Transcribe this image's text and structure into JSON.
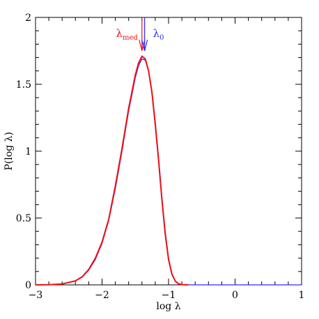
{
  "chart_data": {
    "type": "line",
    "title": "",
    "xlabel": "log λ",
    "ylabel": "P(log λ)",
    "xlim": [
      -3,
      1
    ],
    "ylim": [
      0,
      2
    ],
    "grid": false,
    "x_ticks": [
      {
        "value": -3,
        "label": "−3"
      },
      {
        "value": -2,
        "label": "−2"
      },
      {
        "value": -1,
        "label": "−1"
      },
      {
        "value": 0,
        "label": "0"
      },
      {
        "value": 1,
        "label": "1"
      }
    ],
    "y_ticks": [
      {
        "value": 0,
        "label": "0"
      },
      {
        "value": 0.5,
        "label": "0.5"
      },
      {
        "value": 1,
        "label": "1"
      },
      {
        "value": 1.5,
        "label": "1.5"
      },
      {
        "value": 2,
        "label": "2"
      }
    ],
    "series": [
      {
        "color": "#2b2bff",
        "x": [
          -3.0,
          -2.8,
          -2.6,
          -2.4,
          -2.3,
          -2.2,
          -2.1,
          -2.0,
          -1.9,
          -1.8,
          -1.7,
          -1.6,
          -1.5,
          -1.45,
          -1.4,
          -1.35,
          -1.3,
          -1.25,
          -1.2,
          -1.15,
          -1.1,
          -1.05,
          -1.0,
          -0.95,
          -0.9,
          -0.85,
          -0.8,
          -0.7,
          -0.5,
          0.0,
          0.5,
          1.0
        ],
        "y": [
          0.0,
          0.001,
          0.006,
          0.028,
          0.058,
          0.11,
          0.19,
          0.31,
          0.48,
          0.72,
          1.0,
          1.3,
          1.55,
          1.64,
          1.69,
          1.68,
          1.6,
          1.45,
          1.22,
          0.95,
          0.66,
          0.4,
          0.2,
          0.085,
          0.03,
          0.009,
          0.002,
          0.0,
          0.0,
          0.0,
          0.0,
          0.0
        ]
      },
      {
        "color": "#ee1111",
        "x": [
          -3.0,
          -2.8,
          -2.6,
          -2.4,
          -2.3,
          -2.2,
          -2.1,
          -2.0,
          -1.9,
          -1.8,
          -1.7,
          -1.6,
          -1.5,
          -1.45,
          -1.4,
          -1.35,
          -1.3,
          -1.25,
          -1.2,
          -1.15,
          -1.1,
          -1.05,
          -1.0,
          -0.95,
          -0.9,
          -0.85,
          -0.8,
          -0.7
        ],
        "y": [
          0.0,
          0.001,
          0.007,
          0.03,
          0.06,
          0.115,
          0.2,
          0.32,
          0.49,
          0.74,
          1.02,
          1.32,
          1.57,
          1.66,
          1.71,
          1.69,
          1.6,
          1.44,
          1.2,
          0.93,
          0.64,
          0.38,
          0.19,
          0.08,
          0.028,
          0.008,
          0.002,
          0.0
        ]
      }
    ],
    "markers": [
      {
        "label": "λ",
        "sub": "med",
        "x": -1.4,
        "color": "#ee1111"
      },
      {
        "label": "λ",
        "sub": "0",
        "x": -1.36,
        "color": "#2b2bff"
      }
    ]
  }
}
